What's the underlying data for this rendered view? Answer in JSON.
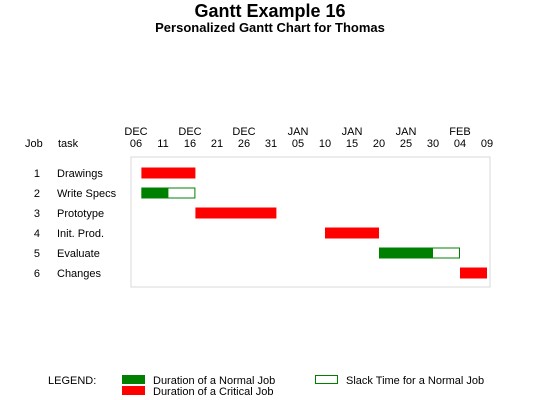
{
  "chart_data": {
    "type": "gantt",
    "title": "Gantt Example 16",
    "subtitle": "Personalized Gantt Chart for Thomas",
    "columns": {
      "job": "Job",
      "task": "task"
    },
    "axis": {
      "start": "2003-12-06",
      "end": "2004-02-09",
      "ticks": [
        {
          "month": "DEC",
          "day": "06"
        },
        {
          "month": "",
          "day": "11"
        },
        {
          "month": "DEC",
          "day": "16"
        },
        {
          "month": "",
          "day": "21"
        },
        {
          "month": "DEC",
          "day": "26"
        },
        {
          "month": "",
          "day": "31"
        },
        {
          "month": "JAN",
          "day": "05"
        },
        {
          "month": "",
          "day": "10"
        },
        {
          "month": "JAN",
          "day": "15"
        },
        {
          "month": "",
          "day": "20"
        },
        {
          "month": "JAN",
          "day": "25"
        },
        {
          "month": "",
          "day": "30"
        },
        {
          "month": "FEB",
          "day": "04"
        },
        {
          "month": "",
          "day": "09"
        }
      ]
    },
    "tasks": [
      {
        "job": "1",
        "task": "Drawings",
        "start": "2003-12-07",
        "end": "2003-12-17",
        "type": "critical"
      },
      {
        "job": "2",
        "task": "Write Specs",
        "start": "2003-12-07",
        "end": "2003-12-12",
        "type": "normal",
        "slack_end": "2003-12-17"
      },
      {
        "job": "3",
        "task": "Prototype",
        "start": "2003-12-17",
        "end": "2004-01-01",
        "type": "critical"
      },
      {
        "job": "4",
        "task": "Init. Prod.",
        "start": "2004-01-10",
        "end": "2004-01-20",
        "type": "critical"
      },
      {
        "job": "5",
        "task": "Evaluate",
        "start": "2004-01-20",
        "end": "2004-01-30",
        "type": "normal",
        "slack_end": "2004-02-04"
      },
      {
        "job": "6",
        "task": "Changes",
        "start": "2004-02-04",
        "end": "2004-02-09",
        "type": "critical"
      }
    ],
    "legend": {
      "title": "LEGEND:",
      "normal": "Duration of a Normal Job",
      "slack": "Slack Time for a Normal Job",
      "critical": "Duration of a Critical Job"
    },
    "colors": {
      "normal": "#008000",
      "critical": "#ff0000",
      "slack": "#008000",
      "frame": "#d8d8d8"
    }
  }
}
